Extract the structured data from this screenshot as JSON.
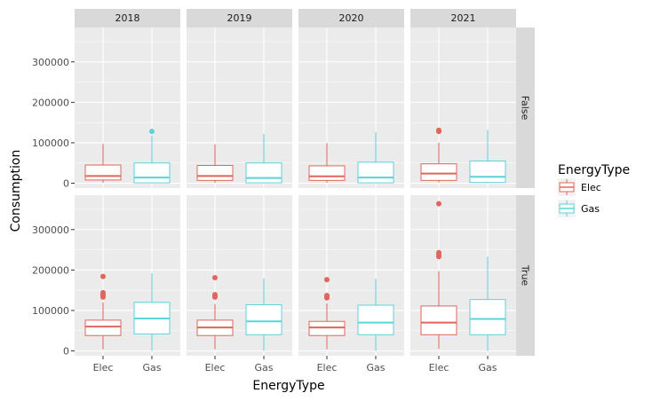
{
  "chart_data": {
    "type": "boxplot",
    "x_label": "EnergyType",
    "y_label": "Consumption",
    "categories": [
      "Elec",
      "Gas"
    ],
    "col_facets": [
      "2018",
      "2019",
      "2020",
      "2021"
    ],
    "row_facets": [
      "False",
      "True"
    ],
    "y_range": [
      -12000,
      385000
    ],
    "y_ticks": [
      {
        "value": 0,
        "label": "0"
      },
      {
        "value": 100000,
        "label": "100000"
      },
      {
        "value": 200000,
        "label": "200000"
      },
      {
        "value": 300000,
        "label": "300000"
      }
    ],
    "colors": {
      "Elec": "#e0665c",
      "Gas": "#5bd3d9"
    },
    "legend": {
      "title": "EnergyType",
      "entries": [
        "Elec",
        "Gas"
      ]
    },
    "boxes": [
      {
        "row": "False",
        "col": "2018",
        "cat": "Elec",
        "lo": 1500,
        "q1": 8000,
        "med": 18000,
        "q3": 45000,
        "hi": 97000,
        "outliers": []
      },
      {
        "row": "False",
        "col": "2018",
        "cat": "Gas",
        "lo": 0,
        "q1": 1000,
        "med": 14000,
        "q3": 50000,
        "hi": 118000,
        "outliers": [
          128000
        ]
      },
      {
        "row": "False",
        "col": "2019",
        "cat": "Elec",
        "lo": 1500,
        "q1": 7000,
        "med": 18000,
        "q3": 44000,
        "hi": 96000,
        "outliers": []
      },
      {
        "row": "False",
        "col": "2019",
        "cat": "Gas",
        "lo": 0,
        "q1": 1000,
        "med": 13000,
        "q3": 50000,
        "hi": 122000,
        "outliers": []
      },
      {
        "row": "False",
        "col": "2020",
        "cat": "Elec",
        "lo": 1500,
        "q1": 7000,
        "med": 17000,
        "q3": 43000,
        "hi": 99000,
        "outliers": []
      },
      {
        "row": "False",
        "col": "2020",
        "cat": "Gas",
        "lo": 0,
        "q1": 1000,
        "med": 14000,
        "q3": 52000,
        "hi": 126000,
        "outliers": []
      },
      {
        "row": "False",
        "col": "2021",
        "cat": "Elec",
        "lo": 2000,
        "q1": 7000,
        "med": 24000,
        "q3": 48000,
        "hi": 100000,
        "outliers": [
          128000,
          131000
        ]
      },
      {
        "row": "False",
        "col": "2021",
        "cat": "Gas",
        "lo": 0,
        "q1": 2000,
        "med": 16000,
        "q3": 55000,
        "hi": 132000,
        "outliers": []
      },
      {
        "row": "True",
        "col": "2018",
        "cat": "Elec",
        "lo": 4000,
        "q1": 38000,
        "med": 60000,
        "q3": 76000,
        "hi": 120000,
        "outliers": [
          133000,
          137000,
          141000,
          144000,
          184000
        ]
      },
      {
        "row": "True",
        "col": "2018",
        "cat": "Gas",
        "lo": 0,
        "q1": 42000,
        "med": 80000,
        "q3": 120000,
        "hi": 192000,
        "outliers": []
      },
      {
        "row": "True",
        "col": "2019",
        "cat": "Elec",
        "lo": 4000,
        "q1": 38000,
        "med": 58000,
        "q3": 76000,
        "hi": 116000,
        "outliers": [
          133000,
          136000,
          139000,
          181000
        ]
      },
      {
        "row": "True",
        "col": "2019",
        "cat": "Gas",
        "lo": 0,
        "q1": 40000,
        "med": 73000,
        "q3": 114000,
        "hi": 179000,
        "outliers": []
      },
      {
        "row": "True",
        "col": "2020",
        "cat": "Elec",
        "lo": 4000,
        "q1": 38000,
        "med": 58000,
        "q3": 73000,
        "hi": 118000,
        "outliers": [
          131000,
          134000,
          137000,
          176000
        ]
      },
      {
        "row": "True",
        "col": "2020",
        "cat": "Gas",
        "lo": 0,
        "q1": 40000,
        "med": 70000,
        "q3": 113000,
        "hi": 178000,
        "outliers": []
      },
      {
        "row": "True",
        "col": "2021",
        "cat": "Elec",
        "lo": 5000,
        "q1": 40000,
        "med": 70000,
        "q3": 111000,
        "hi": 197000,
        "outliers": [
          233000,
          238000,
          243000,
          364000
        ]
      },
      {
        "row": "True",
        "col": "2021",
        "cat": "Gas",
        "lo": 0,
        "q1": 40000,
        "med": 79000,
        "q3": 127000,
        "hi": 233000,
        "outliers": []
      }
    ]
  }
}
